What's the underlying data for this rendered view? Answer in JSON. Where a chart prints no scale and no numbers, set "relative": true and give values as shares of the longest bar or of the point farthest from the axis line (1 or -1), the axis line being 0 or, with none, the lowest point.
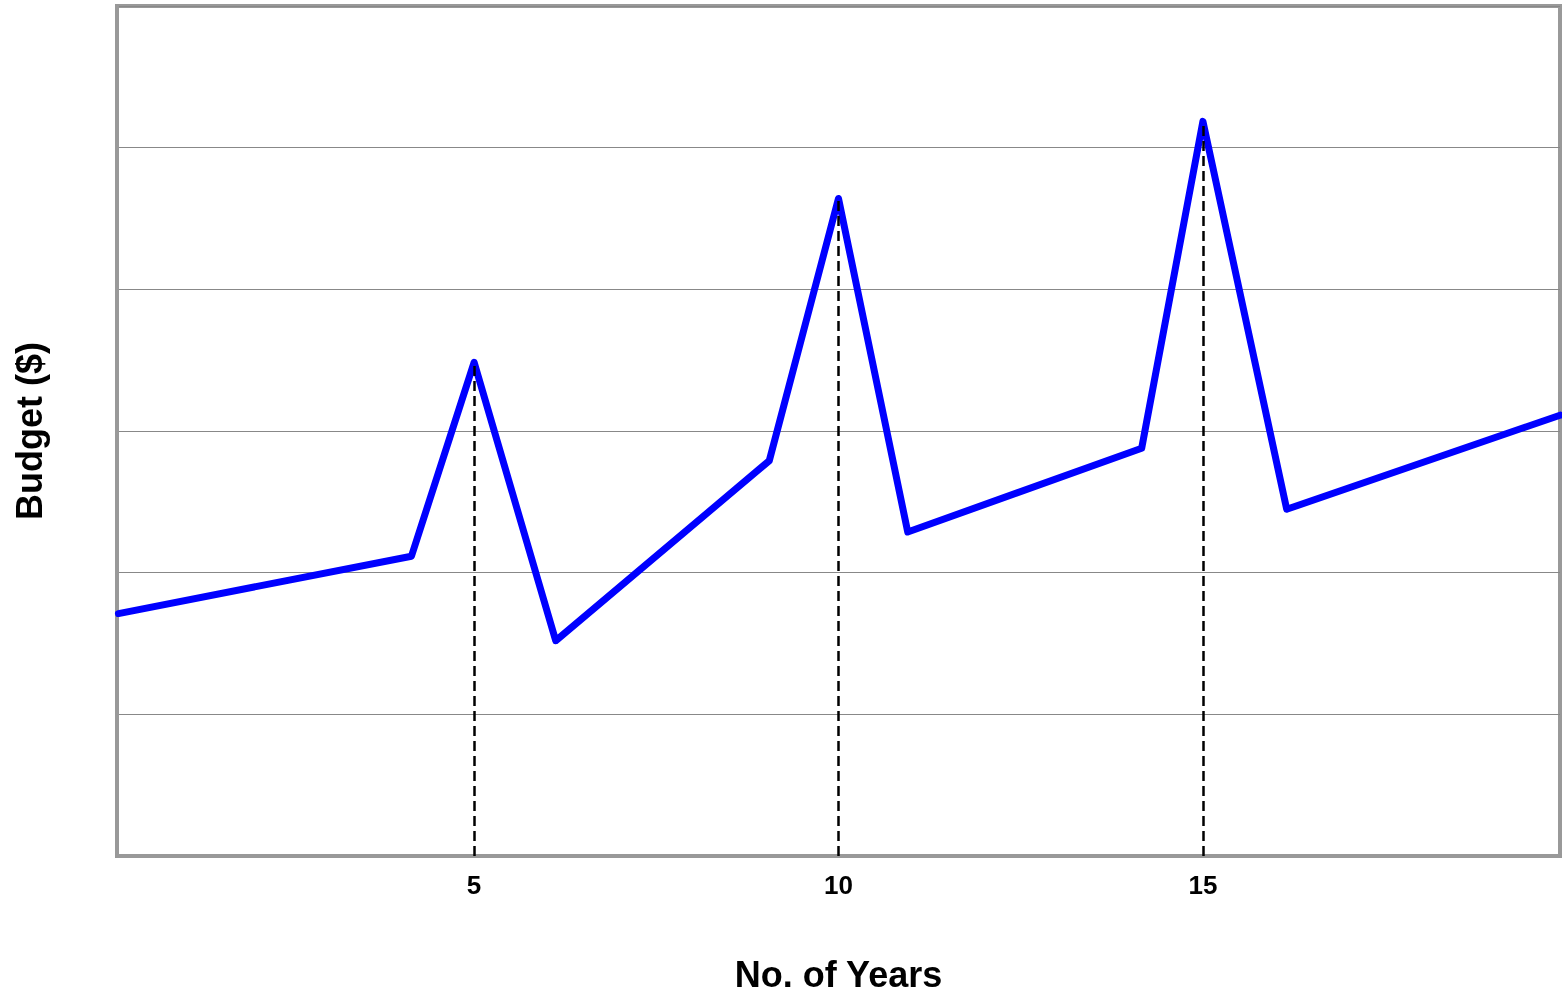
{
  "chart_data": {
    "type": "line",
    "xlabel": "No. of Years",
    "ylabel": "Budget ($)",
    "relative": true,
    "x": [
      0.12,
      4.14,
      5,
      6.12,
      9.05,
      10,
      10.95,
      14.16,
      15,
      16.15,
      19.9
    ],
    "series": [
      {
        "color": "#0000ff",
        "values": [
          0.33,
          0.408,
          0.672,
          0.293,
          0.538,
          0.895,
          0.441,
          0.555,
          1,
          0.472,
          0.6
        ]
      }
    ],
    "xlim": [
      0.1,
      19.9
    ],
    "xticks": [
      5,
      10,
      15
    ],
    "grid": "y",
    "marker": "none",
    "line_style": "solid",
    "ref_lines": [
      {
        "axis": "x",
        "value": 5,
        "color": "#000000",
        "line_style": "dashed"
      },
      {
        "axis": "x",
        "value": 10,
        "color": "#000000",
        "line_style": "dashed"
      },
      {
        "axis": "x",
        "value": 15,
        "color": "#000000",
        "line_style": "dashed"
      }
    ]
  }
}
